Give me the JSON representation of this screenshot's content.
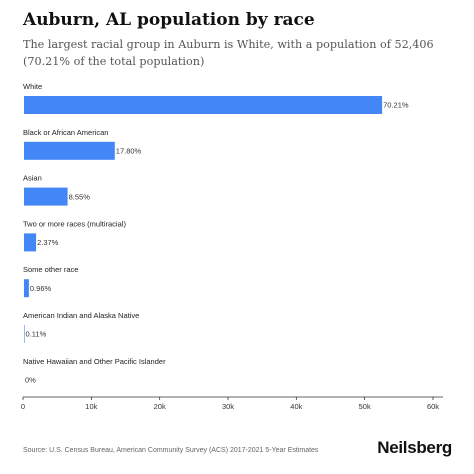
{
  "header": {
    "title": "Auburn, AL population by race",
    "subtitle": "The largest racial group in Auburn is White, with a population of 52,406 (70.21% of the total population)"
  },
  "footer": {
    "source": "Source: U.S. Census Bureau, American Community Survey (ACS) 2017-2021 5-Year Estimates",
    "brand": "Neilsberg"
  },
  "chart_data": {
    "type": "bar",
    "orientation": "horizontal",
    "categories": [
      "White",
      "Black or African American",
      "Asian",
      "Two or more races (multiracial)",
      "Some other race",
      "American Indian and Alaska Native",
      "Native Hawaiian and Other Pacific Islander"
    ],
    "values": [
      52406,
      13286,
      6382,
      1769,
      717,
      82,
      0
    ],
    "value_labels": [
      "70.21%",
      "17.80%",
      "8.55%",
      "2.37%",
      "0.96%",
      "0.11%",
      "0%"
    ],
    "xlim": [
      0,
      60000
    ],
    "xticks": [
      0,
      10000,
      20000,
      30000,
      40000,
      50000,
      60000
    ],
    "xtick_labels": [
      "0",
      "10k",
      "20k",
      "30k",
      "40k",
      "50k",
      "60k"
    ],
    "bar_color": "#4287f5",
    "grid": false,
    "legend": "none"
  }
}
